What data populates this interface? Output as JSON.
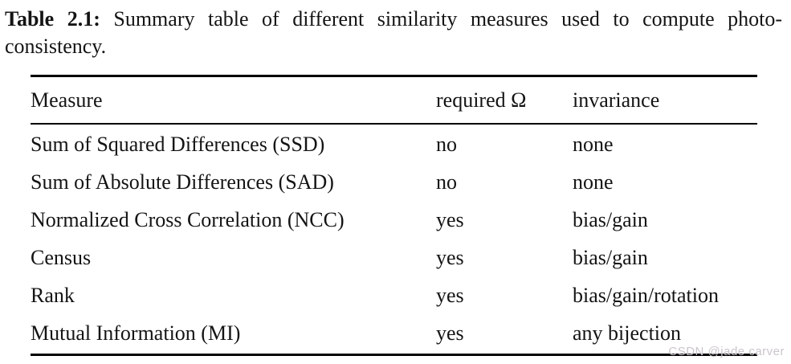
{
  "caption": {
    "label": "Table 2.1:",
    "text": "Summary table of different similarity measures used to compute photo-consistency."
  },
  "table": {
    "columns": [
      "Measure",
      "required Ω",
      "invariance"
    ],
    "rows": [
      {
        "measure": "Sum of Squared Differences (SSD)",
        "required": "no",
        "invariance": "none"
      },
      {
        "measure": "Sum of Absolute Differences (SAD)",
        "required": "no",
        "invariance": "none"
      },
      {
        "measure": "Normalized Cross Correlation (NCC)",
        "required": "yes",
        "invariance": "bias/gain"
      },
      {
        "measure": "Census",
        "required": "yes",
        "invariance": "bias/gain"
      },
      {
        "measure": "Rank",
        "required": "yes",
        "invariance": "bias/gain/rotation"
      },
      {
        "measure": "Mutual Information (MI)",
        "required": "yes",
        "invariance": "any bijection"
      }
    ]
  },
  "watermark": {
    "text": "CSDN @jade carver"
  },
  "colors": {
    "text": "#141414",
    "rule": "#000000",
    "watermark": "#cbc5cc",
    "background": "#ffffff"
  }
}
